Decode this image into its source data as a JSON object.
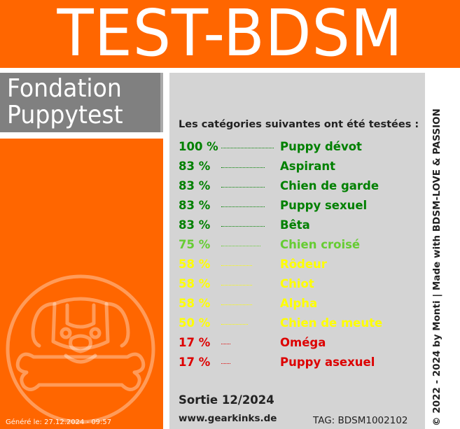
{
  "header": {
    "title": "TEST-BDSM"
  },
  "foundation": {
    "line1": "Fondation",
    "line2": "Puppytest"
  },
  "intro": "Les catégories suivantes ont été testées :",
  "results": [
    {
      "percent": "100 %",
      "category": "Puppy dévot",
      "value": 100,
      "color": "#008000"
    },
    {
      "percent": "83 %",
      "category": "Aspirant",
      "value": 83,
      "color": "#008000"
    },
    {
      "percent": "83 %",
      "category": "Chien de garde",
      "value": 83,
      "color": "#008000"
    },
    {
      "percent": "83 %",
      "category": "Puppy sexuel",
      "value": 83,
      "color": "#008000"
    },
    {
      "percent": "83 %",
      "category": "Bêta",
      "value": 83,
      "color": "#008000"
    },
    {
      "percent": "75 %",
      "category": "Chien croisé",
      "value": 75,
      "color": "#66cc33"
    },
    {
      "percent": "58 %",
      "category": "Rôdeur",
      "value": 58,
      "color": "#ffff00"
    },
    {
      "percent": "58 %",
      "category": "Chiot",
      "value": 58,
      "color": "#ffff00"
    },
    {
      "percent": "58 %",
      "category": "Alpha",
      "value": 58,
      "color": "#ffff00"
    },
    {
      "percent": "50 %",
      "category": "Chien de meute",
      "value": 50,
      "color": "#ffff00"
    },
    {
      "percent": "17 %",
      "category": "Oméga",
      "value": 17,
      "color": "#dd0000"
    },
    {
      "percent": "17 %",
      "category": "Puppy asexuel",
      "value": 17,
      "color": "#dd0000"
    }
  ],
  "release": "Sortie 12/2024",
  "website": "www.gearkinks.de",
  "tag": "TAG: BDSM1002102",
  "generated": "Généré le: 27.12.2024 - 09:57",
  "copyright": "© 2022 - 2024 by Monti | Made with BDSM-LOVE & PASSION",
  "emblem_icon": "puppy-bone-icon",
  "colors": {
    "orange": "#ff6600",
    "grey": "#808080",
    "panel": "#d4d4d4"
  }
}
